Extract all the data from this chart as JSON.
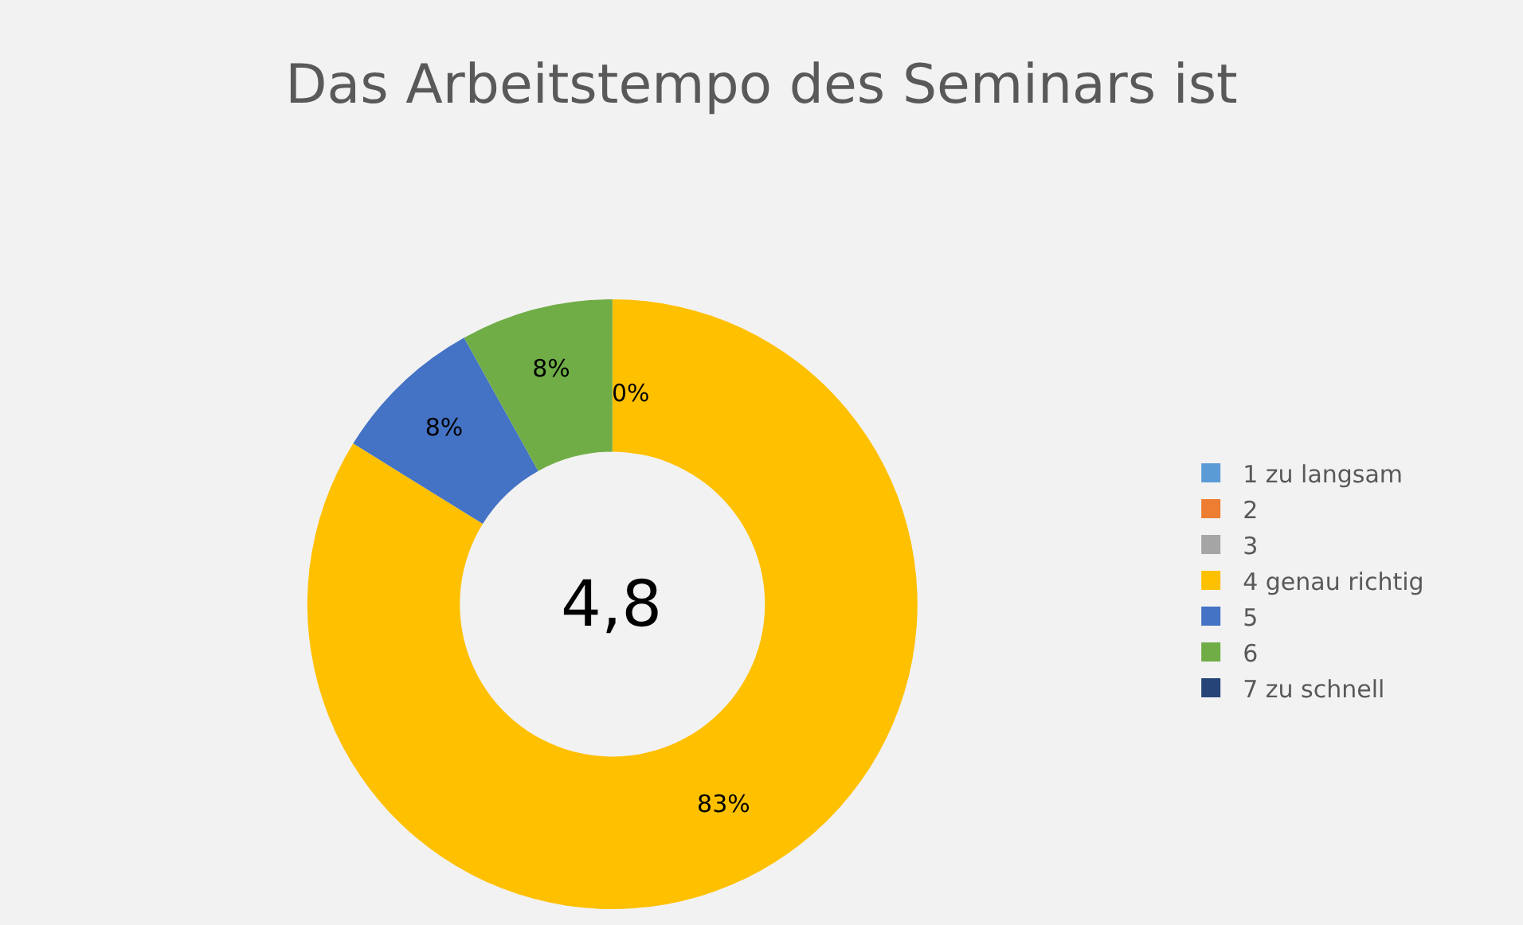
{
  "chart_data": {
    "type": "donut",
    "title": "Das Arbeitstempo des Seminars ist",
    "categories": [
      "1 zu langsam",
      "2",
      "3",
      "4 genau richtig",
      "5",
      "6",
      "7 zu schnell"
    ],
    "values": [
      0,
      0,
      0,
      83,
      8,
      8,
      0
    ],
    "value_labels": [
      "0%",
      null,
      null,
      "83%",
      "8%",
      "8%",
      null
    ],
    "colors": [
      "#5b9bd5",
      "#ed7d31",
      "#a5a5a5",
      "#ffc000",
      "#4472c4",
      "#70ad47",
      "#264478"
    ],
    "annotations": [
      "4,8"
    ],
    "legend": "right"
  }
}
